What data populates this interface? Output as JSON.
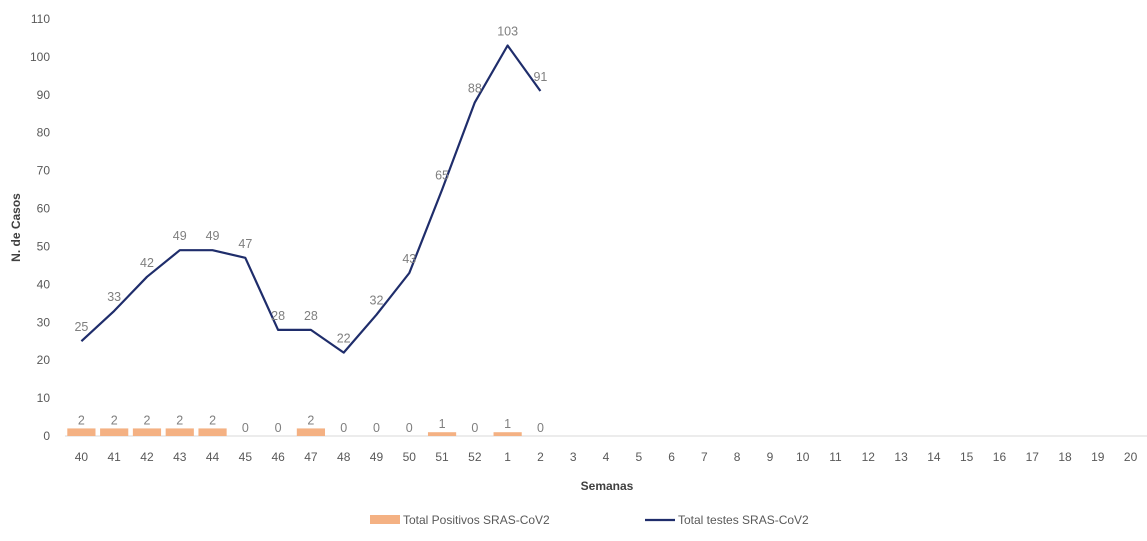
{
  "chart_data": {
    "type": "bar+line",
    "xlabel": "Semanas",
    "ylabel": "N. de Casos",
    "ylim": [
      0,
      110
    ],
    "yticks": [
      "0",
      "10",
      "20",
      "30",
      "40",
      "50",
      "60",
      "70",
      "80",
      "90",
      "100",
      "110"
    ],
    "categories": [
      "40",
      "41",
      "42",
      "43",
      "44",
      "45",
      "46",
      "47",
      "48",
      "49",
      "50",
      "51",
      "52",
      "1",
      "2",
      "3",
      "4",
      "5",
      "6",
      "7",
      "8",
      "9",
      "10",
      "11",
      "12",
      "13",
      "14",
      "15",
      "16",
      "17",
      "18",
      "19",
      "20"
    ],
    "series": [
      {
        "name": "Total Positivos SRAS-CoV2",
        "type": "bar",
        "color": "#f4b183",
        "values": [
          2,
          2,
          2,
          2,
          2,
          0,
          0,
          2,
          0,
          0,
          0,
          1,
          0,
          1,
          0,
          null,
          null,
          null,
          null,
          null,
          null,
          null,
          null,
          null,
          null,
          null,
          null,
          null,
          null,
          null,
          null,
          null,
          null
        ]
      },
      {
        "name": "Total testes SRAS-CoV2",
        "type": "line",
        "color": "#1f2d6b",
        "values": [
          25,
          33,
          42,
          49,
          49,
          47,
          28,
          28,
          22,
          32,
          43,
          65,
          88,
          103,
          91,
          null,
          null,
          null,
          null,
          null,
          null,
          null,
          null,
          null,
          null,
          null,
          null,
          null,
          null,
          null,
          null,
          null,
          null
        ]
      }
    ],
    "grid": false,
    "legend_position": "bottom"
  }
}
